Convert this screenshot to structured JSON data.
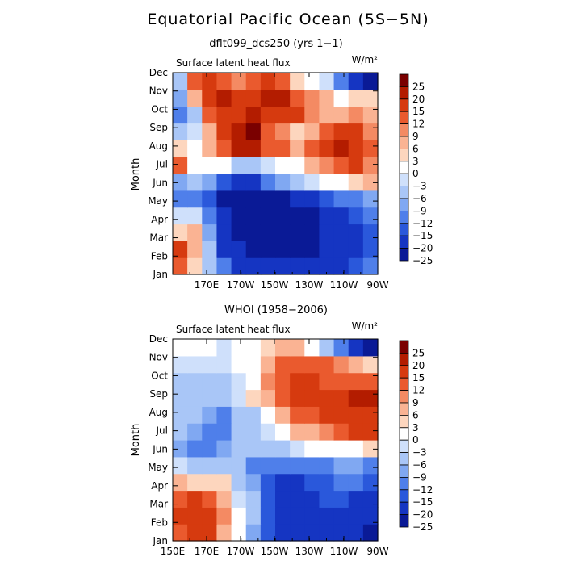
{
  "figure": {
    "title": "Equatorial Pacific Ocean (5S−5N)"
  },
  "colorbar": {
    "labels": [
      "25",
      "20",
      "15",
      "12",
      "9",
      "6",
      "3",
      "0",
      "−3",
      "−6",
      "−9",
      "−12",
      "−15",
      "−20",
      "−25"
    ],
    "colors": [
      "#7a0000",
      "#b31c00",
      "#d63a0f",
      "#ea5a2e",
      "#f48a63",
      "#fab393",
      "#fdd6be",
      "#ffffff",
      "#cfe0fb",
      "#a9c6f7",
      "#80a8f2",
      "#4f7fea",
      "#2a58db",
      "#1535c2",
      "#0a1a96"
    ]
  },
  "chart_data": [
    {
      "type": "heatmap",
      "title": "dflt099_dcs250 (yrs 1−1)",
      "subtitle": "Surface latent heat flux",
      "units": "W/m²",
      "ylabel": "Month",
      "x_ticks": [
        "170E",
        "170W",
        "150W",
        "130W",
        "110W",
        "90W"
      ],
      "y_ticks": [
        "Jan",
        "Feb",
        "Mar",
        "Apr",
        "May",
        "Jun",
        "Jul",
        "Aug",
        "Sep",
        "Oct",
        "Nov",
        "Dec"
      ],
      "x_range": [
        "150E",
        "90W"
      ],
      "values_rows_jan_to_dec": [
        [
          14,
          4,
          -6,
          -12,
          -16,
          -18,
          -20,
          -20,
          -20,
          -18,
          -18,
          -16,
          -14,
          -12
        ],
        [
          16,
          6,
          -6,
          -16,
          -20,
          -22,
          -24,
          -24,
          -24,
          -22,
          -20,
          -18,
          -16,
          -14
        ],
        [
          4,
          6,
          -8,
          -18,
          -24,
          -26,
          -26,
          -26,
          -24,
          -22,
          -20,
          -18,
          -16,
          -14
        ],
        [
          -2,
          -2,
          -10,
          -20,
          -26,
          -26,
          -26,
          -26,
          -24,
          -22,
          -18,
          -16,
          -14,
          -12
        ],
        [
          -10,
          -10,
          -14,
          -22,
          -26,
          -26,
          -24,
          -22,
          -20,
          -16,
          -14,
          -12,
          -10,
          -8
        ],
        [
          -8,
          -6,
          -8,
          -14,
          -18,
          -16,
          -12,
          -8,
          -4,
          -2,
          0,
          2,
          4,
          6
        ],
        [
          12,
          2,
          2,
          2,
          -4,
          -6,
          -2,
          0,
          2,
          6,
          10,
          14,
          16,
          10
        ],
        [
          4,
          0,
          6,
          14,
          22,
          24,
          14,
          12,
          6,
          12,
          16,
          20,
          18,
          14
        ],
        [
          -6,
          -2,
          8,
          16,
          24,
          26,
          14,
          10,
          4,
          6,
          14,
          18,
          16,
          10
        ],
        [
          -10,
          -4,
          12,
          18,
          18,
          20,
          16,
          18,
          16,
          10,
          6,
          8,
          10,
          6
        ],
        [
          -8,
          8,
          16,
          20,
          18,
          18,
          22,
          20,
          14,
          10,
          6,
          2,
          4,
          4
        ],
        [
          -4,
          12,
          16,
          12,
          10,
          14,
          18,
          12,
          4,
          0,
          -2,
          -10,
          -20,
          -24
        ]
      ]
    },
    {
      "type": "heatmap",
      "title": "WHOI (1958−2006)",
      "subtitle": "Surface latent heat flux",
      "units": "W/m²",
      "ylabel": "Month",
      "x_ticks": [
        "150E",
        "170E",
        "170W",
        "150W",
        "130W",
        "110W",
        "90W"
      ],
      "y_ticks": [
        "Jan",
        "Feb",
        "Mar",
        "Apr",
        "May",
        "Jun",
        "Jul",
        "Aug",
        "Sep",
        "Oct",
        "Nov",
        "Dec"
      ],
      "x_range": [
        "150E",
        "90W"
      ],
      "values_rows_jan_to_dec": [
        [
          14,
          16,
          16,
          8,
          2,
          -8,
          -14,
          -16,
          -18,
          -18,
          -16,
          -18,
          -20,
          -22
        ],
        [
          16,
          18,
          16,
          10,
          2,
          -4,
          -14,
          -18,
          -18,
          -18,
          -16,
          -16,
          -18,
          -20
        ],
        [
          14,
          16,
          14,
          8,
          -2,
          -6,
          -14,
          -18,
          -16,
          -16,
          -14,
          -14,
          -16,
          -18
        ],
        [
          6,
          4,
          4,
          4,
          -4,
          -8,
          -14,
          -16,
          -16,
          -14,
          -14,
          -12,
          -12,
          -14
        ],
        [
          -2,
          -4,
          -4,
          -4,
          -6,
          -10,
          -10,
          -12,
          -12,
          -10,
          -10,
          -8,
          -8,
          -10
        ],
        [
          -8,
          -10,
          -10,
          -8,
          -6,
          -6,
          -6,
          -4,
          -2,
          0,
          0,
          2,
          2,
          4
        ],
        [
          -6,
          -8,
          -10,
          -10,
          -6,
          -4,
          -2,
          0,
          6,
          8,
          10,
          12,
          16,
          16
        ],
        [
          -4,
          -4,
          -8,
          -10,
          -6,
          -4,
          2,
          6,
          12,
          14,
          16,
          16,
          18,
          18
        ],
        [
          -4,
          -6,
          -6,
          -4,
          -2,
          4,
          8,
          14,
          16,
          18,
          18,
          18,
          20,
          22
        ],
        [
          -4,
          -4,
          -4,
          -4,
          -2,
          2,
          10,
          14,
          16,
          16,
          12,
          14,
          14,
          14
        ],
        [
          -2,
          -2,
          -2,
          -2,
          0,
          2,
          8,
          12,
          14,
          12,
          12,
          10,
          6,
          4
        ],
        [
          0,
          0,
          0,
          -2,
          0,
          2,
          4,
          6,
          6,
          2,
          -4,
          -12,
          -18,
          -22
        ]
      ]
    }
  ]
}
